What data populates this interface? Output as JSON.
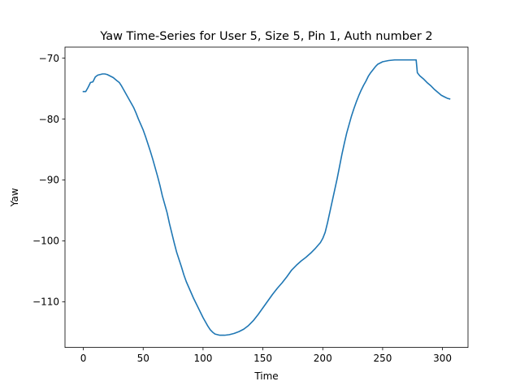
{
  "chart_data": {
    "type": "line",
    "title": "Yaw Time-Series for User 5, Size 5, Pin 1, Auth number 2",
    "xlabel": "Time",
    "ylabel": "Yaw",
    "xlim": [
      -15.3,
      321.3
    ],
    "ylim": [
      -117.5,
      -68.2
    ],
    "xticks": [
      0,
      50,
      100,
      150,
      200,
      250,
      300
    ],
    "yticks": [
      -110,
      -100,
      -90,
      -80,
      -70
    ],
    "grid": false,
    "legend": "none",
    "series": [
      {
        "color": "#1f77b4",
        "points": [
          [
            0,
            -75.5
          ],
          [
            2,
            -75.5
          ],
          [
            4,
            -74.8
          ],
          [
            6,
            -74.0
          ],
          [
            8,
            -73.9
          ],
          [
            10,
            -73.1
          ],
          [
            12,
            -72.8
          ],
          [
            14,
            -72.7
          ],
          [
            16,
            -72.6
          ],
          [
            18,
            -72.6
          ],
          [
            20,
            -72.7
          ],
          [
            22,
            -72.9
          ],
          [
            25,
            -73.2
          ],
          [
            28,
            -73.7
          ],
          [
            30,
            -74.0
          ],
          [
            32,
            -74.6
          ],
          [
            34,
            -75.3
          ],
          [
            36,
            -76.0
          ],
          [
            38,
            -76.7
          ],
          [
            40,
            -77.4
          ],
          [
            42,
            -78.1
          ],
          [
            44,
            -79.0
          ],
          [
            46,
            -80.0
          ],
          [
            48,
            -80.9
          ],
          [
            50,
            -81.8
          ],
          [
            52,
            -82.9
          ],
          [
            54,
            -84.1
          ],
          [
            56,
            -85.3
          ],
          [
            58,
            -86.6
          ],
          [
            60,
            -88.0
          ],
          [
            62,
            -89.4
          ],
          [
            64,
            -90.9
          ],
          [
            66,
            -92.6
          ],
          [
            68,
            -94.0
          ],
          [
            70,
            -95.4
          ],
          [
            72,
            -97.2
          ],
          [
            74,
            -98.8
          ],
          [
            76,
            -100.4
          ],
          [
            78,
            -101.9
          ],
          [
            80,
            -103.1
          ],
          [
            82,
            -104.3
          ],
          [
            84,
            -105.6
          ],
          [
            86,
            -106.7
          ],
          [
            88,
            -107.6
          ],
          [
            90,
            -108.5
          ],
          [
            92,
            -109.4
          ],
          [
            94,
            -110.2
          ],
          [
            96,
            -111.0
          ],
          [
            98,
            -111.8
          ],
          [
            100,
            -112.6
          ],
          [
            102,
            -113.3
          ],
          [
            104,
            -114.0
          ],
          [
            106,
            -114.6
          ],
          [
            108,
            -115.0
          ],
          [
            110,
            -115.3
          ],
          [
            114,
            -115.5
          ],
          [
            118,
            -115.5
          ],
          [
            122,
            -115.4
          ],
          [
            126,
            -115.2
          ],
          [
            130,
            -114.9
          ],
          [
            134,
            -114.5
          ],
          [
            138,
            -113.9
          ],
          [
            142,
            -113.1
          ],
          [
            146,
            -112.1
          ],
          [
            150,
            -111.0
          ],
          [
            154,
            -109.9
          ],
          [
            158,
            -108.8
          ],
          [
            162,
            -107.8
          ],
          [
            166,
            -106.9
          ],
          [
            170,
            -105.9
          ],
          [
            174,
            -104.8
          ],
          [
            178,
            -104.0
          ],
          [
            182,
            -103.3
          ],
          [
            186,
            -102.7
          ],
          [
            190,
            -102.0
          ],
          [
            194,
            -101.2
          ],
          [
            198,
            -100.3
          ],
          [
            200,
            -99.6
          ],
          [
            202,
            -98.6
          ],
          [
            204,
            -97.0
          ],
          [
            206,
            -95.2
          ],
          [
            208,
            -93.4
          ],
          [
            210,
            -91.6
          ],
          [
            212,
            -89.8
          ],
          [
            214,
            -87.8
          ],
          [
            216,
            -85.8
          ],
          [
            218,
            -84.0
          ],
          [
            220,
            -82.3
          ],
          [
            222,
            -80.9
          ],
          [
            224,
            -79.5
          ],
          [
            226,
            -78.3
          ],
          [
            228,
            -77.2
          ],
          [
            230,
            -76.2
          ],
          [
            232,
            -75.3
          ],
          [
            234,
            -74.5
          ],
          [
            236,
            -73.8
          ],
          [
            238,
            -73.0
          ],
          [
            240,
            -72.4
          ],
          [
            242,
            -71.9
          ],
          [
            244,
            -71.4
          ],
          [
            246,
            -71.0
          ],
          [
            248,
            -70.8
          ],
          [
            250,
            -70.6
          ],
          [
            255,
            -70.4
          ],
          [
            260,
            -70.3
          ],
          [
            265,
            -70.3
          ],
          [
            270,
            -70.3
          ],
          [
            275,
            -70.3
          ],
          [
            278,
            -70.3
          ],
          [
            279,
            -72.4
          ],
          [
            281,
            -72.9
          ],
          [
            284,
            -73.4
          ],
          [
            287,
            -74.0
          ],
          [
            290,
            -74.5
          ],
          [
            293,
            -75.1
          ],
          [
            296,
            -75.6
          ],
          [
            299,
            -76.1
          ],
          [
            302,
            -76.4
          ],
          [
            304,
            -76.6
          ],
          [
            306,
            -76.7
          ]
        ]
      }
    ]
  }
}
